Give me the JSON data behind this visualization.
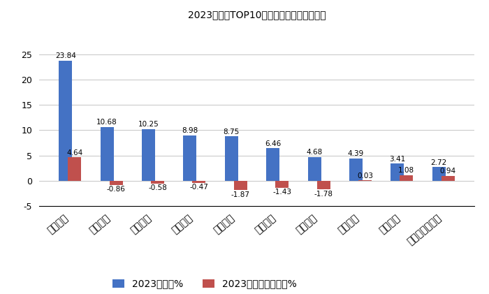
{
  "title": "2023年轻卡TOP10车企市场占比及同比增减",
  "categories": [
    "北汽福田",
    "长城汽车",
    "东风汽车",
    "江淮汽车",
    "长安汽车",
    "江铃汽车",
    "上汽大通",
    "中国重汽",
    "华晨鑫源",
    "吉利四川商用车"
  ],
  "share_values": [
    23.84,
    10.68,
    10.25,
    8.98,
    8.75,
    6.46,
    4.68,
    4.39,
    3.41,
    2.72
  ],
  "yoy_values": [
    4.64,
    -0.86,
    -0.58,
    -0.47,
    -1.87,
    -1.43,
    -1.78,
    0.03,
    1.08,
    0.94
  ],
  "share_labels": [
    "23.84",
    "10.68",
    "10.25",
    "8.98",
    "8.75",
    "6.46",
    "4.68",
    "4.39",
    "3.41",
    "2.72"
  ],
  "yoy_labels": [
    "4.64",
    "-0.86",
    "-0.58",
    "-0.47",
    "-1.87",
    "-1.43",
    "-1.78",
    "0.03",
    "1.08",
    "0.94"
  ],
  "bar_color_share": "#4472C4",
  "bar_color_yoy": "#C0504D",
  "ylim_min": -5,
  "ylim_max": 30,
  "yticks": [
    -5,
    0,
    5,
    10,
    15,
    20,
    25
  ],
  "legend_share": "2023年份额%",
  "legend_yoy": "2023年份额同比增减%",
  "bg_color": "#FFFFFF",
  "title_fontsize": 15,
  "label_fontsize": 7.5,
  "bar_width": 0.32
}
